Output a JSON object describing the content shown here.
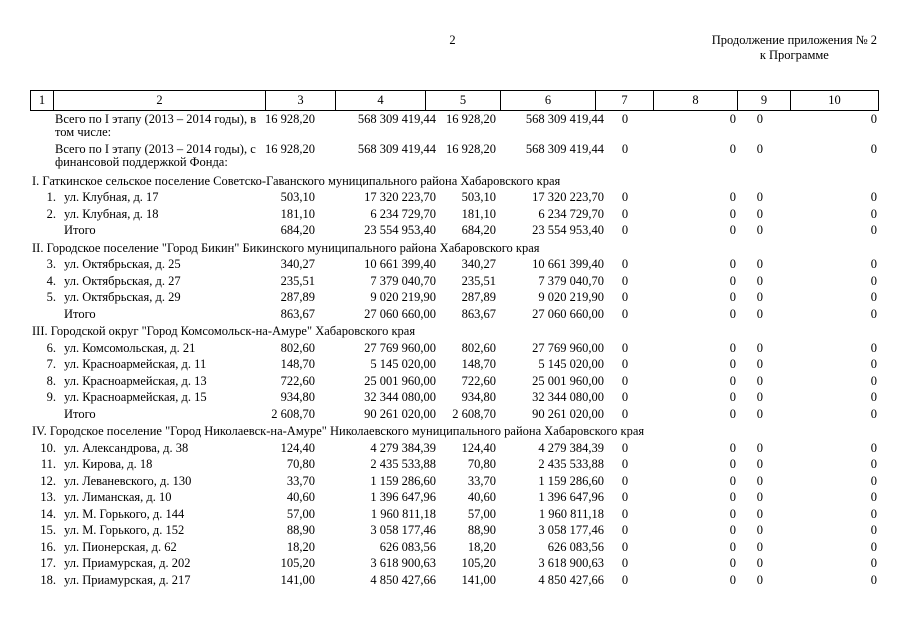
{
  "page": {
    "page_number": "2",
    "continuation_line1": "Продолжение приложения № 2",
    "continuation_line2": "к Программе"
  },
  "colors": {
    "text": "#000000",
    "background": "#ffffff",
    "border": "#000000"
  },
  "table": {
    "column_headers": [
      "1",
      "2",
      "3",
      "4",
      "5",
      "6",
      "7",
      "8",
      "9",
      "10"
    ],
    "rows": [
      {
        "type": "summary",
        "label": "Всего по I этапу (2013 – 2014 годы), в том числе:",
        "c3": "16 928,20",
        "c4": "568 309 419,44",
        "c5": "16 928,20",
        "c6": "568 309 419,44",
        "c7": "0",
        "c8": "0",
        "c9": "0",
        "c10": "0"
      },
      {
        "type": "summary",
        "label": "Всего по I этапу (2013 – 2014 годы), с финансовой поддержкой Фонда:",
        "c3": "16 928,20",
        "c4": "568 309 419,44",
        "c5": "16 928,20",
        "c6": "568 309 419,44",
        "c7": "0",
        "c8": "0",
        "c9": "0",
        "c10": "0"
      },
      {
        "type": "section",
        "label": "I. Гаткинское сельское поселение Советско-Гаванского муниципального района Хабаровского края"
      },
      {
        "type": "item",
        "num": "1.",
        "label": "ул. Клубная, д. 17",
        "c3": "503,10",
        "c4": "17 320 223,70",
        "c5": "503,10",
        "c6": "17 320 223,70",
        "c7": "0",
        "c8": "0",
        "c9": "0",
        "c10": "0"
      },
      {
        "type": "item",
        "num": "2.",
        "label": "ул. Клубная, д. 18",
        "c3": "181,10",
        "c4": "6 234 729,70",
        "c5": "181,10",
        "c6": "6 234 729,70",
        "c7": "0",
        "c8": "0",
        "c9": "0",
        "c10": "0"
      },
      {
        "type": "total",
        "label": "Итого",
        "c3": "684,20",
        "c4": "23 554 953,40",
        "c5": "684,20",
        "c6": "23 554 953,40",
        "c7": "0",
        "c8": "0",
        "c9": "0",
        "c10": "0"
      },
      {
        "type": "section",
        "label": "II. Городское поселение \"Город Бикин\" Бикинского муниципального района Хабаровского края"
      },
      {
        "type": "item",
        "num": "3.",
        "label": "ул. Октябрьская, д. 25",
        "c3": "340,27",
        "c4": "10 661 399,40",
        "c5": "340,27",
        "c6": "10 661 399,40",
        "c7": "0",
        "c8": "0",
        "c9": "0",
        "c10": "0"
      },
      {
        "type": "item",
        "num": "4.",
        "label": "ул. Октябрьская, д. 27",
        "c3": "235,51",
        "c4": "7 379 040,70",
        "c5": "235,51",
        "c6": "7 379 040,70",
        "c7": "0",
        "c8": "0",
        "c9": "0",
        "c10": "0"
      },
      {
        "type": "item",
        "num": "5.",
        "label": "ул. Октябрьская, д. 29",
        "c3": "287,89",
        "c4": "9 020 219,90",
        "c5": "287,89",
        "c6": "9 020 219,90",
        "c7": "0",
        "c8": "0",
        "c9": "0",
        "c10": "0"
      },
      {
        "type": "total",
        "label": "Итого",
        "c3": "863,67",
        "c4": "27 060 660,00",
        "c5": "863,67",
        "c6": "27 060 660,00",
        "c7": "0",
        "c8": "0",
        "c9": "0",
        "c10": "0"
      },
      {
        "type": "section",
        "label": "III. Городской округ \"Город Комсомольск-на-Амуре\" Хабаровского края"
      },
      {
        "type": "item",
        "num": "6.",
        "label": "ул. Комсомольская, д. 21",
        "c3": "802,60",
        "c4": "27 769 960,00",
        "c5": "802,60",
        "c6": "27 769 960,00",
        "c7": "0",
        "c8": "0",
        "c9": "0",
        "c10": "0"
      },
      {
        "type": "item",
        "num": "7.",
        "label": "ул. Красноармейская, д. 11",
        "c3": "148,70",
        "c4": "5 145 020,00",
        "c5": "148,70",
        "c6": "5 145 020,00",
        "c7": "0",
        "c8": "0",
        "c9": "0",
        "c10": "0"
      },
      {
        "type": "item",
        "num": "8.",
        "label": "ул. Красноармейская, д. 13",
        "c3": "722,60",
        "c4": "25 001 960,00",
        "c5": "722,60",
        "c6": "25 001 960,00",
        "c7": "0",
        "c8": "0",
        "c9": "0",
        "c10": "0"
      },
      {
        "type": "item",
        "num": "9.",
        "label": "ул. Красноармейская, д. 15",
        "c3": "934,80",
        "c4": "32 344 080,00",
        "c5": "934,80",
        "c6": "32 344 080,00",
        "c7": "0",
        "c8": "0",
        "c9": "0",
        "c10": "0"
      },
      {
        "type": "total",
        "label": "Итого",
        "c3": "2 608,70",
        "c4": "90 261 020,00",
        "c5": "2 608,70",
        "c6": "90 261 020,00",
        "c7": "0",
        "c8": "0",
        "c9": "0",
        "c10": "0"
      },
      {
        "type": "section",
        "label": "IV. Городское поселение \"Город Николаевск-на-Амуре\" Николаевского муниципального района Хабаровского края"
      },
      {
        "type": "item",
        "num": "10.",
        "label": "ул. Александрова, д. 38",
        "c3": "124,40",
        "c4": "4 279 384,39",
        "c5": "124,40",
        "c6": "4 279 384,39",
        "c7": "0",
        "c8": "0",
        "c9": "0",
        "c10": "0"
      },
      {
        "type": "item",
        "num": "11.",
        "label": "ул. Кирова, д. 18",
        "c3": "70,80",
        "c4": "2 435 533,88",
        "c5": "70,80",
        "c6": "2 435 533,88",
        "c7": "0",
        "c8": "0",
        "c9": "0",
        "c10": "0"
      },
      {
        "type": "item",
        "num": "12.",
        "label": "ул. Леваневского, д. 130",
        "c3": "33,70",
        "c4": "1 159 286,60",
        "c5": "33,70",
        "c6": "1 159 286,60",
        "c7": "0",
        "c8": "0",
        "c9": "0",
        "c10": "0"
      },
      {
        "type": "item",
        "num": "13.",
        "label": "ул. Лиманская, д. 10",
        "c3": "40,60",
        "c4": "1 396 647,96",
        "c5": "40,60",
        "c6": "1 396 647,96",
        "c7": "0",
        "c8": "0",
        "c9": "0",
        "c10": "0"
      },
      {
        "type": "item",
        "num": "14.",
        "label": "ул. М. Горького, д. 144",
        "c3": "57,00",
        "c4": "1 960 811,18",
        "c5": "57,00",
        "c6": "1 960 811,18",
        "c7": "0",
        "c8": "0",
        "c9": "0",
        "c10": "0"
      },
      {
        "type": "item",
        "num": "15.",
        "label": "ул. М. Горького, д. 152",
        "c3": "88,90",
        "c4": "3 058 177,46",
        "c5": "88,90",
        "c6": "3 058 177,46",
        "c7": "0",
        "c8": "0",
        "c9": "0",
        "c10": "0"
      },
      {
        "type": "item",
        "num": "16.",
        "label": "ул. Пионерская, д. 62",
        "c3": "18,20",
        "c4": "626 083,56",
        "c5": "18,20",
        "c6": "626 083,56",
        "c7": "0",
        "c8": "0",
        "c9": "0",
        "c10": "0"
      },
      {
        "type": "item",
        "num": "17.",
        "label": "ул. Приамурская, д. 202",
        "c3": "105,20",
        "c4": "3 618 900,63",
        "c5": "105,20",
        "c6": "3 618 900,63",
        "c7": "0",
        "c8": "0",
        "c9": "0",
        "c10": "0"
      },
      {
        "type": "item",
        "num": "18.",
        "label": "ул. Приамурская, д. 217",
        "c3": "141,00",
        "c4": "4 850 427,66",
        "c5": "141,00",
        "c6": "4 850 427,66",
        "c7": "0",
        "c8": "0",
        "c9": "0",
        "c10": "0"
      }
    ]
  }
}
